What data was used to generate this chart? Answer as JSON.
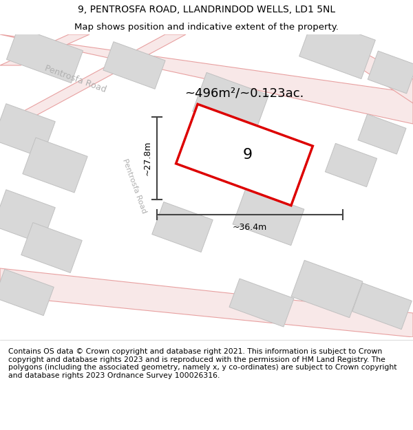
{
  "title_line1": "9, PENTROSFA ROAD, LLANDRINDOD WELLS, LD1 5NL",
  "title_line2": "Map shows position and indicative extent of the property.",
  "area_text": "~496m²/~0.123ac.",
  "width_label": "~36.4m",
  "height_label": "~27.8m",
  "plot_number": "9",
  "footer_text": "Contains OS data © Crown copyright and database right 2021. This information is subject to Crown copyright and database rights 2023 and is reproduced with the permission of HM Land Registry. The polygons (including the associated geometry, namely x, y co-ordinates) are subject to Crown copyright and database rights 2023 Ordnance Survey 100026316.",
  "bg_color": "#f0f0f0",
  "road_stroke_color": "#e8a0a0",
  "road_fill_color": "#f8e8e8",
  "plot_outline_color": "#dd0000",
  "building_color": "#d8d8d8",
  "building_outline": "#c0c0c0",
  "road_label_color": "#b0b0b0",
  "dimension_color": "#444444",
  "title_fontsize": 10,
  "footer_fontsize": 7.8,
  "map_bg": "#f7f7f7"
}
